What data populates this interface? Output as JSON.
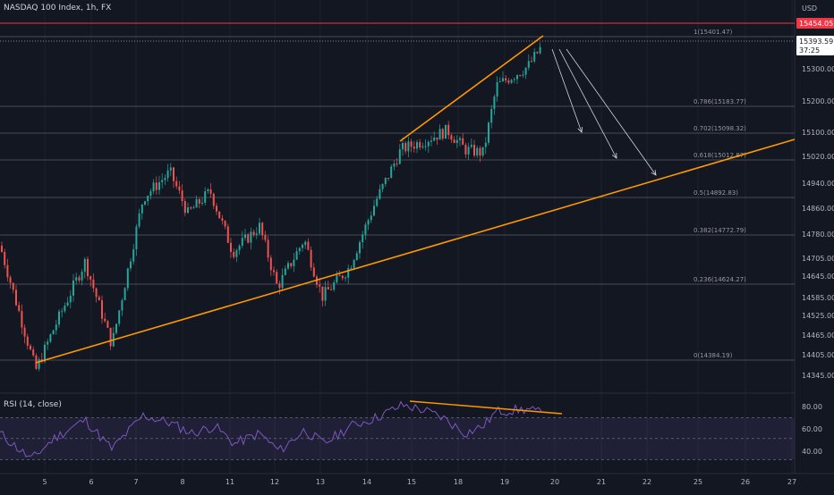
{
  "header": {
    "title": "NASDAQ 100 Index, 1h, FX"
  },
  "price_axis": {
    "currency_code": "USD",
    "ticks": [
      "15300.00",
      "15200.00",
      "15100.00",
      "15020.00",
      "14940.00",
      "14860.00",
      "14780.00",
      "14705.00",
      "14645.00",
      "14585.00",
      "14525.00",
      "14465.00",
      "14405.00",
      "14345.00"
    ]
  },
  "current_price": {
    "value": "15393.59",
    "countdown": "37:25"
  },
  "resistance": {
    "value": "15454.05",
    "color": "#f23645"
  },
  "fib_levels": [
    {
      "ratio": "1",
      "price": 15401.47,
      "label": "1(15401.47)"
    },
    {
      "ratio": "0.786",
      "price": 15183.77,
      "label": "0.786(15183.77)"
    },
    {
      "ratio": "0.702",
      "price": 15098.32,
      "label": "0.702(15098.32)"
    },
    {
      "ratio": "0.618",
      "price": 15012.87,
      "label": "0.618(15012.87)"
    },
    {
      "ratio": "0.5",
      "price": 14892.83,
      "label": "0.5(14892.83)"
    },
    {
      "ratio": "0.382",
      "price": 14772.79,
      "label": "0.382(14772.79)"
    },
    {
      "ratio": "0.236",
      "price": 14624.27,
      "label": "0.236(14624.27)"
    },
    {
      "ratio": "0",
      "price": 14384.19,
      "label": "0(14384.19)"
    }
  ],
  "time_axis": [
    "5",
    "6",
    "7",
    "8",
    "11",
    "12",
    "13",
    "14",
    "15",
    "18",
    "19",
    "20",
    "21",
    "22",
    "25",
    "26",
    "27"
  ],
  "rsi": {
    "label": "RSI (14, close)",
    "ticks": [
      "80.00",
      "60.00",
      "40.00"
    ],
    "upper": 70,
    "lower": 30
  },
  "chart_data": {
    "type": "candlestick",
    "title": "NASDAQ 100 Index, 1h, FX",
    "ylim": [
      14330,
      15520
    ],
    "swing_points": [
      {
        "x": "4",
        "close": 14780
      },
      {
        "x": "5",
        "close": 14390
      },
      {
        "x": "6",
        "close": 14730
      },
      {
        "x": "6",
        "close": 14470
      },
      {
        "x": "7",
        "close": 15010
      },
      {
        "x": "11",
        "close": 14640
      },
      {
        "x": "12",
        "close": 14800
      },
      {
        "x": "13",
        "close": 14620
      },
      {
        "x": "14",
        "close": 15080
      },
      {
        "x": "18",
        "close": 15110
      },
      {
        "x": "18",
        "close": 15070
      },
      {
        "x": "19",
        "close": 15330
      },
      {
        "x": "19",
        "close": 15401
      }
    ],
    "colors": {
      "up": "#26a69a",
      "down": "#ef5350",
      "trend": "#ff9800",
      "resistance": "#f23645"
    }
  }
}
